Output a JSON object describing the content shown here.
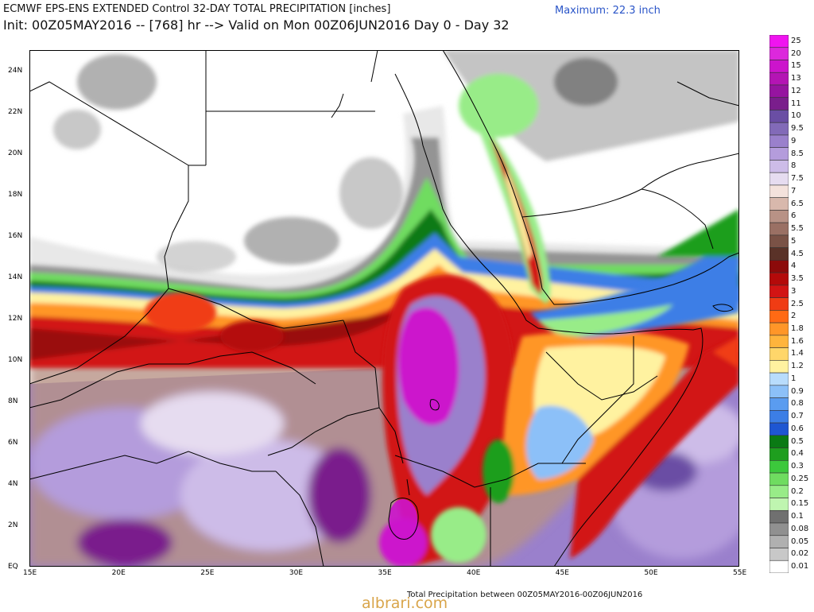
{
  "header": {
    "title_line1": "ECMWF EPS-ENS EXTENDED Control 32-DAY TOTAL PRECIPITATION [inches]",
    "title_line2": "Init: 00Z05MAY2016 -- [768] hr --> Valid on Mon 00Z06JUN2016  Day 0 - Day 32",
    "maximum": "Maximum: 22.3 inch"
  },
  "map": {
    "lon_range": [
      15,
      55
    ],
    "lat_range": [
      0,
      25
    ],
    "lon_ticks": [
      "15E",
      "20E",
      "25E",
      "30E",
      "35E",
      "40E",
      "45E",
      "50E",
      "55E"
    ],
    "lat_ticks": [
      "EQ",
      "2N",
      "4N",
      "6N",
      "8N",
      "10N",
      "12N",
      "14N",
      "16N",
      "18N",
      "20N",
      "22N",
      "24N"
    ]
  },
  "legend": {
    "levels": [
      "0.01",
      "0.02",
      "0.05",
      "0.08",
      "0.1",
      "0.15",
      "0.2",
      "0.25",
      "0.3",
      "0.4",
      "0.5",
      "0.6",
      "0.7",
      "0.8",
      "0.9",
      "1",
      "1.2",
      "1.4",
      "1.6",
      "1.8",
      "2",
      "2.5",
      "3",
      "3.5",
      "4",
      "4.5",
      "5",
      "5.5",
      "6",
      "6.5",
      "7",
      "7.5",
      "8",
      "8.5",
      "9",
      "9.5",
      "10",
      "11",
      "12",
      "13",
      "15",
      "20",
      "25"
    ],
    "colors": [
      "#ffffff",
      "#c8c8c8",
      "#b0b0b0",
      "#909090",
      "#707070",
      "#bff5b0",
      "#98ec88",
      "#6fdc60",
      "#3cc83c",
      "#1e9e1e",
      "#0a7a14",
      "#1e56d2",
      "#3c7ee6",
      "#5a9cf0",
      "#8cc0f8",
      "#b8dcfc",
      "#fff2a0",
      "#ffd66a",
      "#ffb43c",
      "#ff9628",
      "#ff6a14",
      "#f03c14",
      "#d21414",
      "#b40a0a",
      "#8c0a0a",
      "#5a3228",
      "#7a5246",
      "#9a7064",
      "#b89286",
      "#d8b8ac",
      "#f4e2dc",
      "#e6dcf0",
      "#cdbce8",
      "#b49cdc",
      "#9a80cc",
      "#826ab8",
      "#6a4ea4",
      "#7a1e8c",
      "#9614a0",
      "#b414b4",
      "#cc14cc",
      "#dc28dc",
      "#f014f0"
    ]
  },
  "footer": "Total Precipitation between 00Z05MAY2016-00Z06JUN2016",
  "watermark": "albrari.com"
}
